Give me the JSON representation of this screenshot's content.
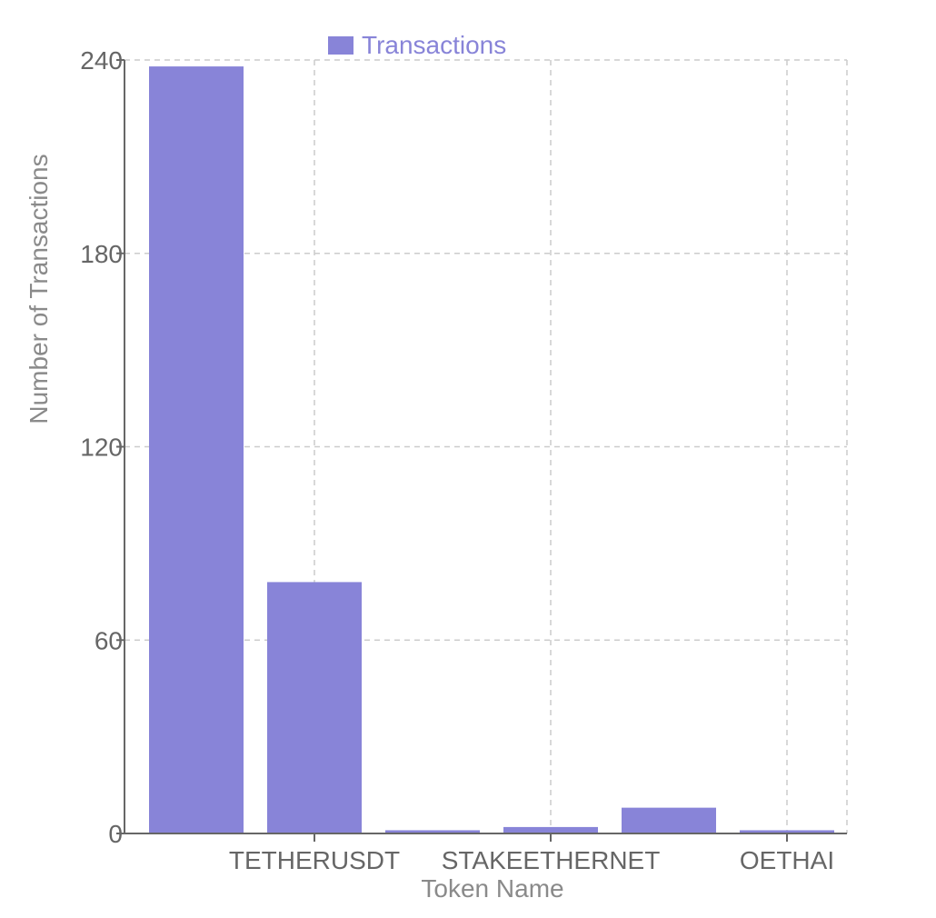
{
  "colors": {
    "bar": "#8884d8",
    "grid": "#cccccc",
    "axis": "#666666"
  },
  "chart_data": {
    "type": "bar",
    "categories": [
      "",
      "TETHERUSDT",
      "",
      "STAKEETHERNET",
      "",
      "OETHAI"
    ],
    "series": [
      {
        "name": "Transactions",
        "values": [
          238,
          78,
          1,
          2,
          8,
          1
        ]
      }
    ],
    "xlabel": "Token Name",
    "ylabel": "Number of Transactions",
    "ylim": [
      0,
      240
    ],
    "yticks": [
      0,
      60,
      120,
      180,
      240
    ],
    "grid": true,
    "legend": "top-center"
  }
}
